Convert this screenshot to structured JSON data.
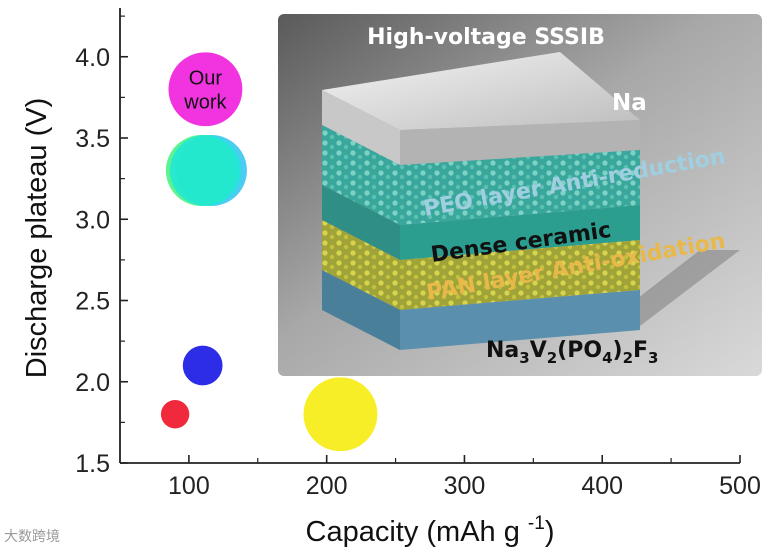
{
  "chart_data": {
    "type": "scatter",
    "title": "",
    "xlabel": "Capacity (mAh g",
    "xlabel_sup": "-1",
    "xlabel_close": ")",
    "ylabel": "Discharge plateau (V)",
    "xlim": [
      50,
      500
    ],
    "ylim": [
      1.5,
      4.3
    ],
    "xticks": [
      100,
      200,
      300,
      400,
      500
    ],
    "yticks": [
      1.5,
      2.0,
      2.5,
      3.0,
      3.5,
      4.0
    ],
    "ytick_labels": [
      "1.5",
      "2.0",
      "2.5",
      "3.0",
      "3.5",
      "4.0"
    ],
    "points": [
      {
        "x": 112,
        "y": 3.8,
        "size": 26,
        "color": "#f233e0",
        "label_lines": [
          "Our",
          "work"
        ]
      },
      {
        "x": 112,
        "y": 3.3,
        "size": 25,
        "color": "#20e6d8",
        "label_lines": []
      },
      {
        "x": 110,
        "y": 2.1,
        "size": 14,
        "color": "#2d2de8",
        "label_lines": []
      },
      {
        "x": 90,
        "y": 1.8,
        "size": 10,
        "color": "#f02a3c",
        "label_lines": []
      },
      {
        "x": 210,
        "y": 1.8,
        "size": 26,
        "color": "#f7ee28",
        "label_lines": []
      }
    ],
    "inset": {
      "title": "High-voltage SSSIB",
      "layer_na": "Na",
      "layer_peo": "PEO layer Anti-reduction",
      "layer_ceramic": "Dense ceramic",
      "layer_pan": "PAN layer Anti-oxidation",
      "cathode_parts": [
        "Na",
        "3",
        "V",
        "2",
        "(PO",
        "4",
        ")",
        "2",
        "F",
        "3"
      ]
    }
  },
  "watermark": "大数跨境"
}
